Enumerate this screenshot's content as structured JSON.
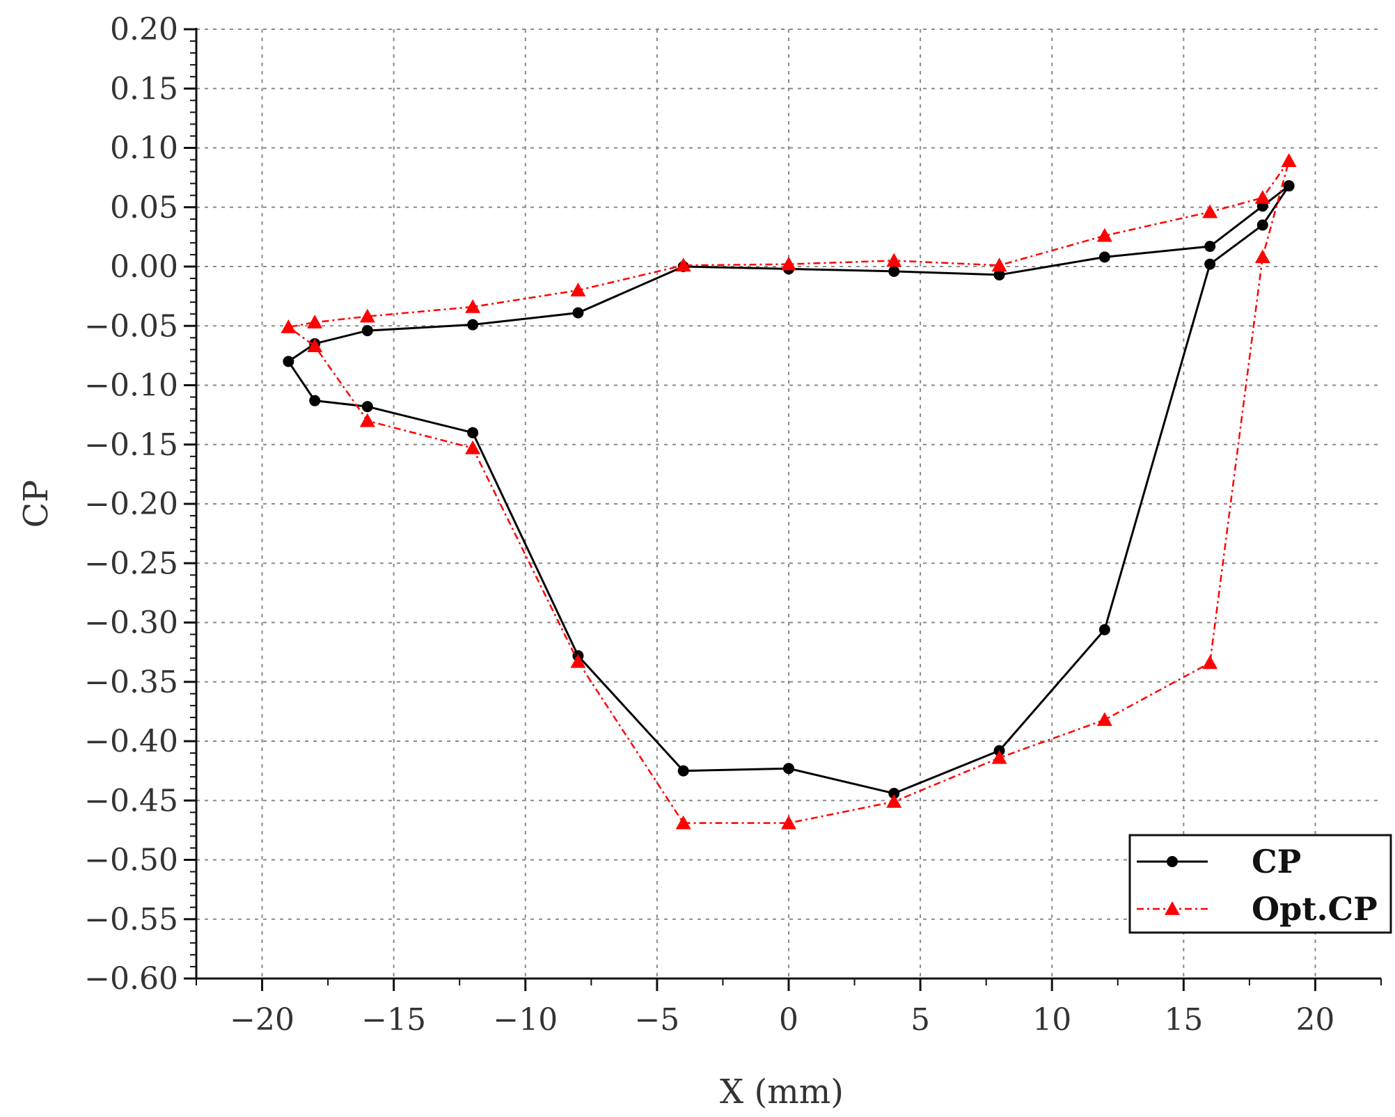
{
  "chart_data": {
    "type": "line",
    "title": "",
    "xlabel": "X (mm)",
    "ylabel": "CP",
    "xlim": [
      -22.5,
      22.5
    ],
    "ylim": [
      -0.6,
      0.2
    ],
    "xticks": [
      -20,
      -15,
      -10,
      -5,
      0,
      5,
      10,
      15,
      20
    ],
    "xtick_labels": [
      "−20",
      "−15",
      "−10",
      "−5",
      "0",
      "5",
      "10",
      "15",
      "20"
    ],
    "yticks": [
      0.2,
      0.15,
      0.1,
      0.05,
      0.0,
      -0.05,
      -0.1,
      -0.15,
      -0.2,
      -0.25,
      -0.3,
      -0.35,
      -0.4,
      -0.45,
      -0.5,
      -0.55,
      -0.6
    ],
    "ytick_labels": [
      "0.20",
      "0.15",
      "0.10",
      "0.05",
      "0.00",
      "−0.05",
      "−0.10",
      "−0.15",
      "−0.20",
      "−0.25",
      "−0.30",
      "−0.35",
      "−0.40",
      "−0.45",
      "−0.50",
      "−0.55",
      "−0.60"
    ],
    "grid": true,
    "legend_position": "bottom-right",
    "series": [
      {
        "name": "CP",
        "color": "#000000",
        "line_style": "solid",
        "marker": "circle",
        "x": [
          19,
          18,
          16,
          12,
          8,
          4,
          0,
          -4,
          -8,
          -12,
          -16,
          -18,
          -19,
          -18,
          -16,
          -12,
          -8,
          -4,
          0,
          4,
          8,
          12,
          16,
          18,
          19
        ],
        "y": [
          0.068,
          0.051,
          0.017,
          0.008,
          -0.007,
          -0.004,
          -0.002,
          0.0,
          -0.039,
          -0.049,
          -0.054,
          -0.065,
          -0.08,
          -0.113,
          -0.118,
          -0.14,
          -0.328,
          -0.425,
          -0.423,
          -0.444,
          -0.408,
          -0.306,
          0.002,
          0.035,
          0.068
        ]
      },
      {
        "name": "Opt.CP",
        "color": "#ff0000",
        "line_style": "dash-dot",
        "marker": "triangle",
        "x": [
          19,
          18,
          16,
          12,
          8,
          4,
          0,
          -4,
          -8,
          -12,
          -16,
          -18,
          -19,
          -18,
          -16,
          -12,
          -8,
          -4,
          0,
          4,
          8,
          12,
          16,
          18,
          19
        ],
        "y": [
          0.089,
          0.058,
          0.046,
          0.026,
          0.001,
          0.005,
          0.002,
          0.001,
          -0.02,
          -0.034,
          -0.042,
          -0.047,
          -0.051,
          -0.067,
          -0.13,
          -0.153,
          -0.333,
          -0.469,
          -0.469,
          -0.451,
          -0.414,
          -0.382,
          -0.334,
          0.008,
          0.089
        ]
      }
    ]
  }
}
